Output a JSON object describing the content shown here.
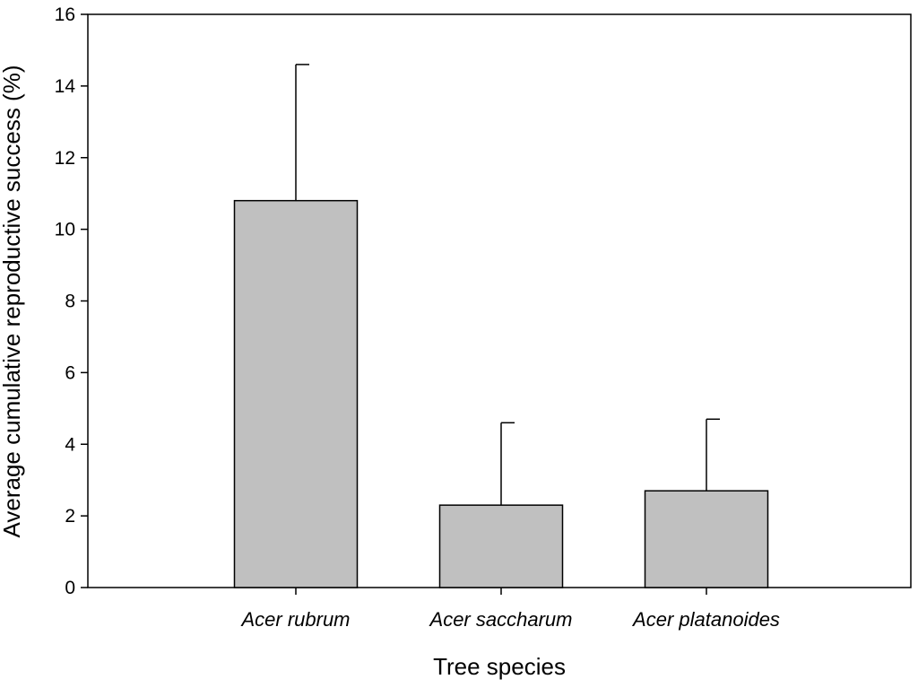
{
  "chart_data": {
    "type": "bar",
    "title": "",
    "xlabel": "Tree species",
    "ylabel": "Average cumulative reproductive success (%)",
    "categories": [
      "Acer rubrum",
      "Acer saccharum",
      "Acer platanoides"
    ],
    "values": [
      10.8,
      2.3,
      2.7
    ],
    "error_upper": [
      14.6,
      4.6,
      4.7
    ],
    "ylim": [
      0,
      16
    ],
    "yticks": [
      0,
      2,
      4,
      6,
      8,
      10,
      12,
      14,
      16
    ],
    "grid": false,
    "legend": "none",
    "colors": {
      "bar_fill": "#c0c0c0",
      "bar_stroke": "#000000",
      "axis": "#000000"
    }
  }
}
